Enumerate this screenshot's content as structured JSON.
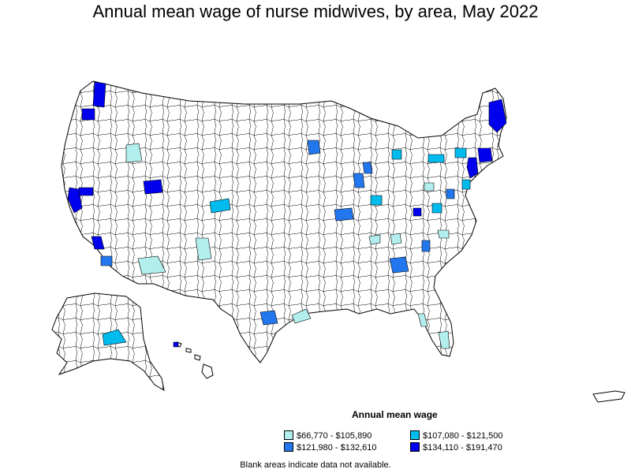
{
  "title": "Annual mean wage of nurse midwives, by area, May 2022",
  "legend": {
    "title": "Annual mean wage",
    "items": [
      {
        "label": "$66,770 - $105,890",
        "color": "#b2eeee"
      },
      {
        "label": "$107,080 - $121,500",
        "color": "#00bbee"
      },
      {
        "label": "$121,980 - $132,610",
        "color": "#2277ee"
      },
      {
        "label": "$134,110 - $191,470",
        "color": "#0000ee"
      }
    ]
  },
  "note": "Blank areas indicate data not available.",
  "colors": {
    "border": "#000000",
    "background": "#ffffff"
  }
}
